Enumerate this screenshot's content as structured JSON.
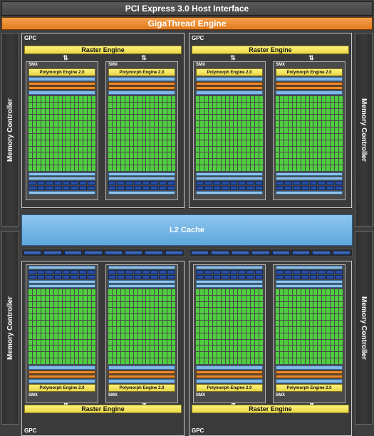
{
  "host_interface": "PCI Express 3.0 Host Interface",
  "gigathread": "GigaThread Engine",
  "memory_controller": "Memory Controller",
  "l2_cache": "L2 Cache",
  "gpc_label": "GPC",
  "raster_engine": "Raster Engine",
  "smx_label": "SMX",
  "polymorph_engine": "Polymorph Engine 2.0",
  "arrows": "⇅",
  "colors": {
    "cuda_core": "#4fcf3f",
    "polymorph": "#fff27a",
    "gigathread": "#e47c1e",
    "l2": "#5ea6dc",
    "ldst": "#2a4fa8"
  }
}
